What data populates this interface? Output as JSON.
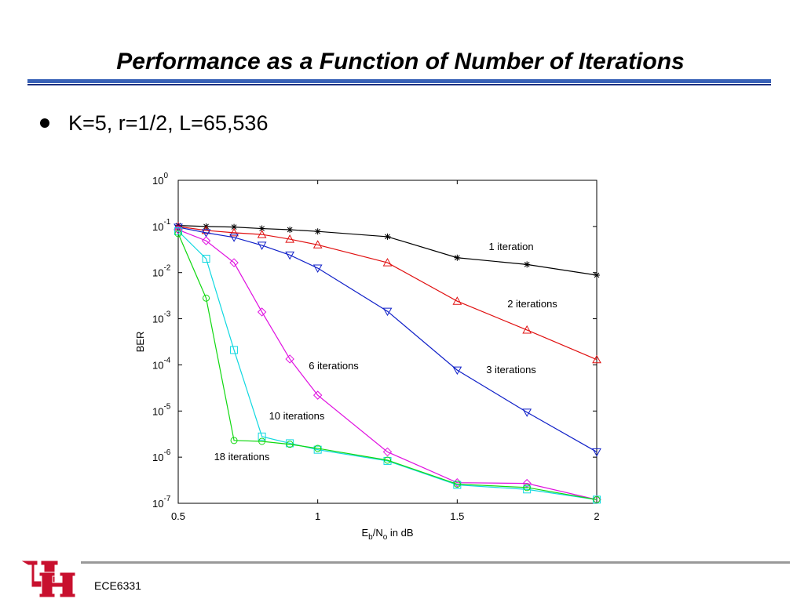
{
  "header": {
    "title": "Performance as a Function of Number of Iterations"
  },
  "bullets": [
    "K=5, r=1/2, L=65,536"
  ],
  "footer": {
    "course": "ECE6331"
  },
  "chart_data": {
    "type": "line",
    "yscale": "log",
    "grid": false,
    "y_label": "BER",
    "x_label": [
      {
        "text": "E"
      },
      {
        "text": "b",
        "sub": true
      },
      {
        "text": "/N"
      },
      {
        "text": "o",
        "sub": true
      },
      {
        "text": " in dB"
      }
    ],
    "xlim": [
      0.5,
      2
    ],
    "xticks": [
      0.5,
      1,
      1.5,
      2
    ],
    "ylim": [
      1e-07,
      1
    ],
    "yticks": [
      {
        "value": 1e-07,
        "label": "10",
        "exponent": "-7"
      },
      {
        "value": 1e-06,
        "label": "10",
        "exponent": "-6"
      },
      {
        "value": 1e-05,
        "label": "10",
        "exponent": "-5"
      },
      {
        "value": 0.0001,
        "label": "10",
        "exponent": "-4"
      },
      {
        "value": 0.001,
        "label": "10",
        "exponent": "-3"
      },
      {
        "value": 0.01,
        "label": "10",
        "exponent": "-2"
      },
      {
        "value": 0.1,
        "label": "10",
        "exponent": "-1"
      },
      {
        "value": 1,
        "label": "10",
        "exponent": "0"
      }
    ],
    "x": [
      0.5,
      0.6,
      0.7,
      0.8,
      0.9,
      1.0,
      1.25,
      1.5,
      1.75,
      2.0
    ],
    "series": [
      {
        "name": "1 iteration",
        "color": "#000000",
        "marker": "star",
        "values": [
          0.105,
          0.1,
          0.097,
          0.09,
          0.085,
          0.078,
          0.06,
          0.021,
          0.015,
          0.0088
        ]
      },
      {
        "name": "2 iterations",
        "color": "#e01010",
        "marker": "triangle-up",
        "values": [
          0.1,
          0.082,
          0.073,
          0.067,
          0.053,
          0.04,
          0.0164,
          0.0024,
          0.00057,
          0.00013
        ]
      },
      {
        "name": "3 iterations",
        "color": "#1020c8",
        "marker": "triangle-down",
        "values": [
          0.096,
          0.073,
          0.058,
          0.039,
          0.024,
          0.0125,
          0.00145,
          7.7e-05,
          9.4e-06,
          1.3e-06
        ]
      },
      {
        "name": "6 iterations",
        "color": "#e010e0",
        "marker": "diamond",
        "values": [
          0.085,
          0.049,
          0.0164,
          0.0014,
          0.000134,
          2.2e-05,
          1.3e-06,
          2.8e-07,
          2.7e-07,
          1.2e-07
        ]
      },
      {
        "name": "10 iterations",
        "color": "#10d8e0",
        "marker": "square",
        "values": [
          0.079,
          0.02,
          0.00021,
          2.8e-06,
          2e-06,
          1.45e-06,
          8.3e-07,
          2.5e-07,
          2e-07,
          1.2e-07
        ]
      },
      {
        "name": "18 iterations",
        "color": "#10d810",
        "marker": "circle",
        "values": [
          0.07,
          0.0028,
          2.3e-06,
          2.2e-06,
          1.9e-06,
          1.55e-06,
          8.6e-07,
          2.6e-07,
          2.2e-07,
          1.2e-07
        ]
      }
    ]
  }
}
